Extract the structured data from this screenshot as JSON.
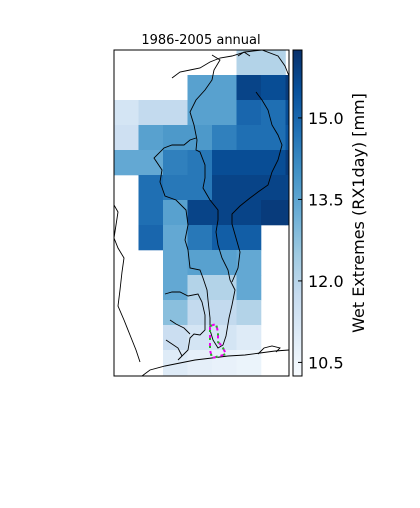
{
  "title": "1986-2005 annual",
  "colorbar": {
    "label": "Wet Extremes (RX1day) [mm]",
    "min": 10.25,
    "max": 16.25,
    "ticks": [
      {
        "value": 10.5,
        "label": "10.5"
      },
      {
        "value": 12.0,
        "label": "12.0"
      },
      {
        "value": 13.5,
        "label": "13.5"
      },
      {
        "value": 15.0,
        "label": "15.0"
      }
    ],
    "colormap": "Blues",
    "colormap_stops": [
      "#f7fbff",
      "#deebf7",
      "#c6dbef",
      "#9ecae1",
      "#6baed6",
      "#4292c6",
      "#2171b5",
      "#08519c",
      "#08306b"
    ]
  },
  "grid": {
    "note_units": "mm",
    "rows": [
      [
        null,
        null,
        null,
        null,
        null,
        12.1,
        12.1,
        null
      ],
      [
        null,
        null,
        null,
        13.6,
        13.6,
        15.8,
        15.6,
        16.0
      ],
      [
        11.3,
        11.8,
        11.8,
        13.6,
        13.6,
        15.0,
        14.8,
        15.6
      ],
      [
        11.5,
        13.6,
        13.8,
        13.8,
        14.4,
        14.8,
        14.8,
        15.4
      ],
      [
        13.4,
        13.4,
        14.4,
        14.6,
        15.6,
        15.6,
        15.6,
        16.0
      ],
      [
        null,
        14.8,
        14.6,
        14.6,
        15.8,
        15.8,
        15.8,
        15.8
      ],
      [
        null,
        14.8,
        13.6,
        15.8,
        15.8,
        15.8,
        16.0,
        16.0
      ],
      [
        null,
        15.0,
        13.4,
        14.6,
        15.2,
        15.2,
        null,
        null
      ],
      [
        null,
        null,
        13.4,
        13.6,
        13.6,
        13.4,
        null,
        null
      ],
      [
        null,
        null,
        13.4,
        12.1,
        12.1,
        13.4,
        null,
        null
      ],
      [
        null,
        null,
        12.8,
        11.8,
        11.8,
        12.1,
        null,
        null
      ],
      [
        null,
        null,
        11.6,
        11.3,
        11.3,
        11.0,
        null,
        null
      ],
      [
        null,
        null,
        11.0,
        10.8,
        10.7,
        10.6,
        null,
        null
      ],
      [
        null,
        null,
        10.7,
        10.5,
        10.5,
        10.5,
        null,
        null
      ],
      [
        null,
        null,
        10.5,
        10.4,
        10.4,
        10.4,
        null,
        null
      ]
    ]
  }
}
